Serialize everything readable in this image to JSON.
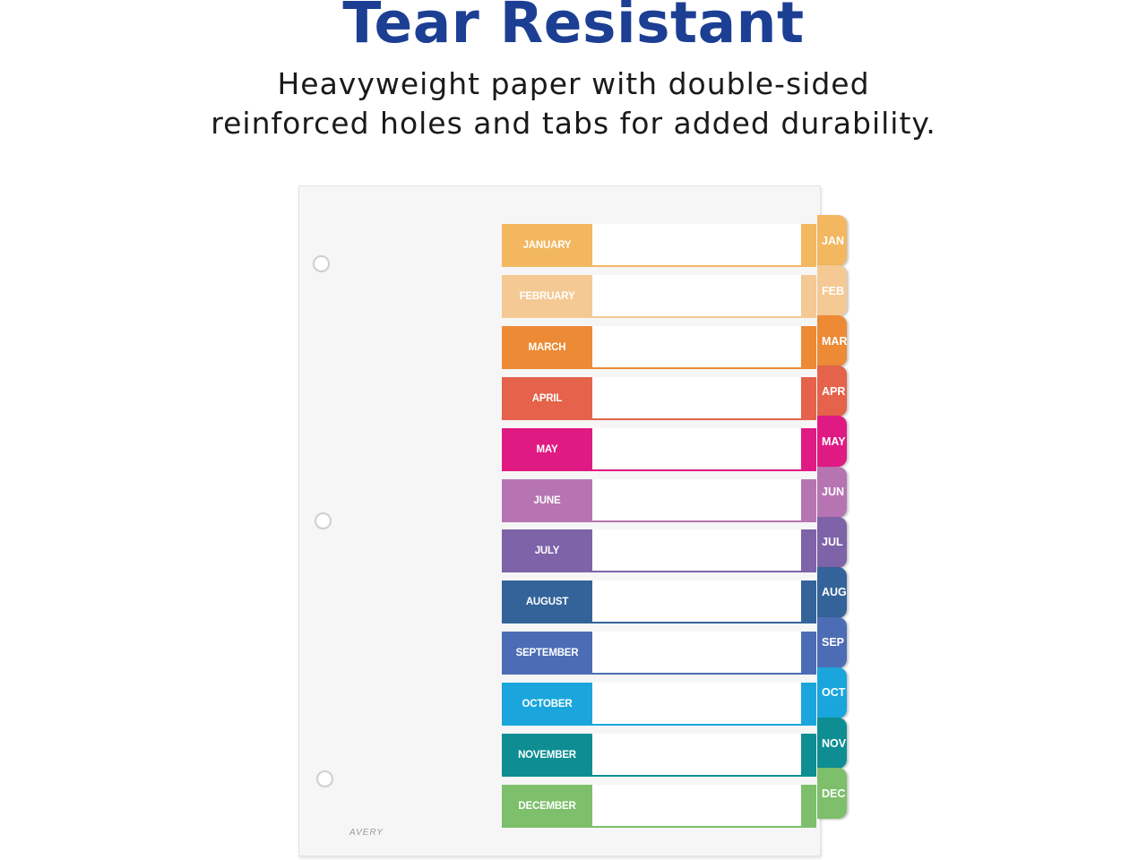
{
  "header": {
    "title": "Tear Resistant",
    "subtitle_line1": "Heavyweight paper with double-sided",
    "subtitle_line2": "reinforced holes and tabs for added durability."
  },
  "sheet": {
    "brand": "AVERY",
    "months": [
      {
        "label": "JANUARY",
        "tab": "JAN",
        "color": "#f2b75f"
      },
      {
        "label": "FEBRUARY",
        "tab": "FEB",
        "color": "#f4c994"
      },
      {
        "label": "MARCH",
        "tab": "MAR",
        "color": "#ec8a35"
      },
      {
        "label": "APRIL",
        "tab": "APR",
        "color": "#e4634a"
      },
      {
        "label": "MAY",
        "tab": "MAY",
        "color": "#e01a83"
      },
      {
        "label": "JUNE",
        "tab": "JUN",
        "color": "#b675b2"
      },
      {
        "label": "JULY",
        "tab": "JUL",
        "color": "#7e63a8"
      },
      {
        "label": "AUGUST",
        "tab": "AUG",
        "color": "#346399"
      },
      {
        "label": "SEPTEMBER",
        "tab": "SEP",
        "color": "#4c6db5"
      },
      {
        "label": "OCTOBER",
        "tab": "OCT",
        "color": "#1aa6dc"
      },
      {
        "label": "NOVEMBER",
        "tab": "NOV",
        "color": "#0e8e93"
      },
      {
        "label": "DECEMBER",
        "tab": "DEC",
        "color": "#7dbf6a"
      }
    ]
  }
}
